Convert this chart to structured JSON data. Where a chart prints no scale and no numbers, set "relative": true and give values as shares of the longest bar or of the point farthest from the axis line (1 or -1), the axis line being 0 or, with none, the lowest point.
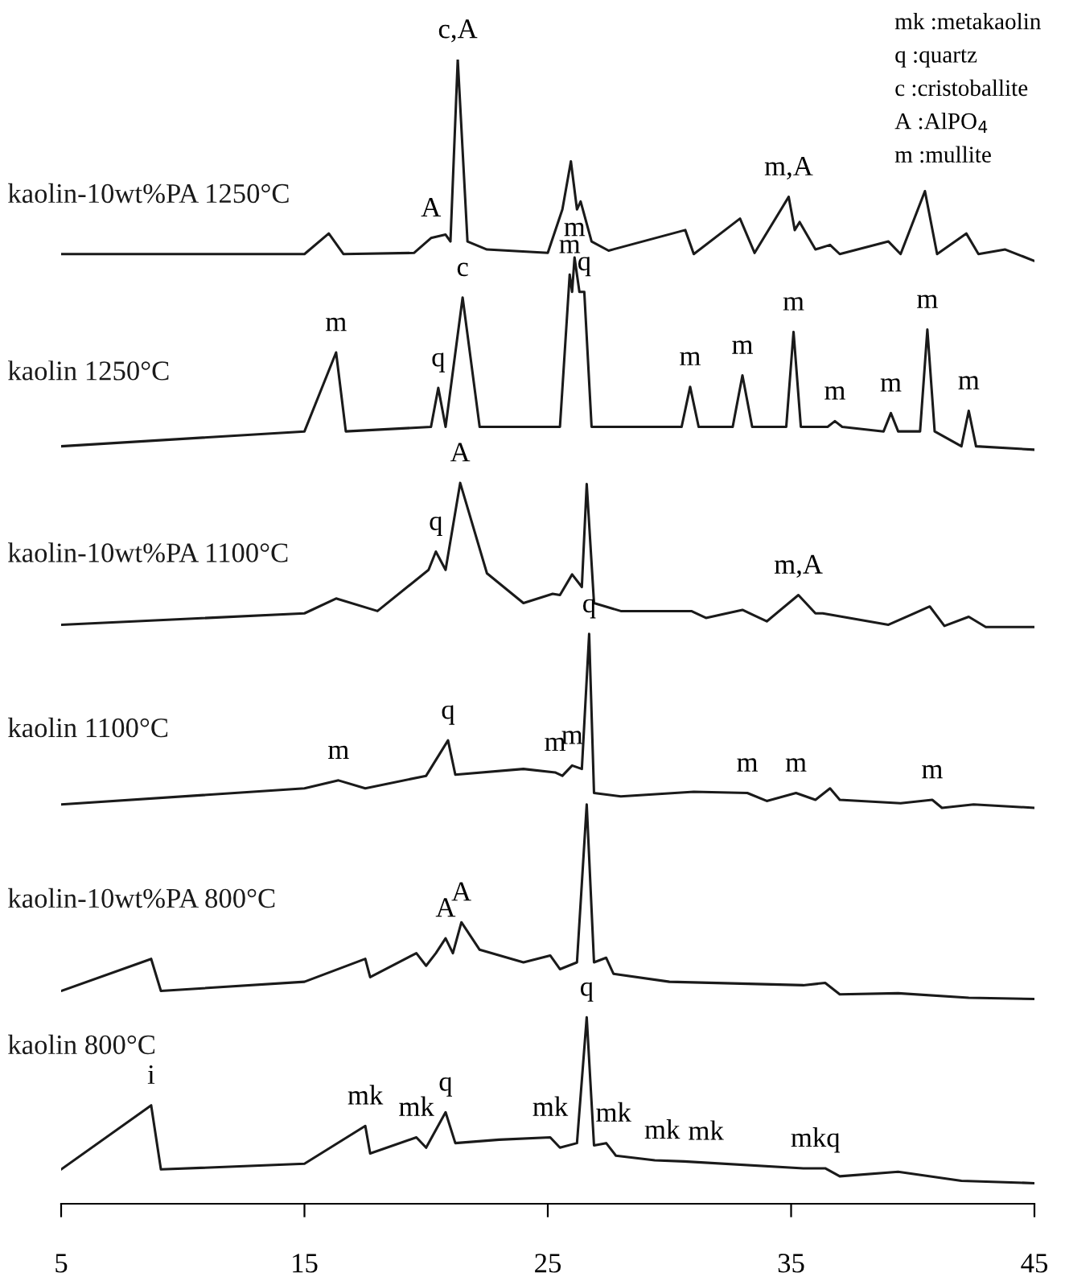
{
  "chart_data": {
    "type": "line",
    "relative": true,
    "xlim": [
      5,
      45
    ],
    "xticks": [
      5,
      15,
      25,
      35,
      45
    ],
    "tick_labels": "x",
    "grid": false,
    "marker": "none",
    "line_style": "solid",
    "series": [
      {
        "name": "kaolin-10wt%PA 1250°C",
        "color": "#1a1a1a",
        "x": [
          5,
          15,
          16.0,
          16.6,
          19.5,
          20.2,
          20.8,
          21.0,
          21.3,
          21.7,
          22.5,
          25.0,
          25.6,
          25.95,
          26.2,
          26.35,
          26.8,
          27.5,
          30.65,
          31.0,
          32.9,
          33.5,
          34.9,
          35.15,
          35.35,
          36.0,
          36.6,
          37.0,
          39.0,
          39.5,
          40.5,
          41.0,
          42.2,
          42.7,
          43.8,
          45
        ],
        "values": [
          0.83,
          0.83,
          0.848,
          0.83,
          0.831,
          0.844,
          0.847,
          0.841,
          1.0,
          0.841,
          0.834,
          0.831,
          0.869,
          0.911,
          0.869,
          0.876,
          0.841,
          0.833,
          0.851,
          0.83,
          0.861,
          0.831,
          0.88,
          0.851,
          0.858,
          0.834,
          0.838,
          0.83,
          0.841,
          0.83,
          0.885,
          0.83,
          0.848,
          0.83,
          0.834,
          0.824
        ]
      },
      {
        "name": "kaolin 1250°C",
        "color": "#1a1a1a",
        "x": [
          5,
          15,
          16.3,
          16.7,
          20.2,
          20.5,
          20.8,
          21.5,
          22.2,
          25.5,
          25.9,
          26.0,
          26.1,
          26.3,
          26.5,
          26.8,
          30.5,
          30.85,
          31.2,
          32.6,
          33.0,
          33.4,
          34.8,
          35.1,
          35.4,
          36.5,
          36.8,
          37.1,
          38.8,
          39.1,
          39.4,
          40.3,
          40.6,
          40.9,
          42.0,
          42.3,
          42.6,
          45
        ],
        "values": [
          0.662,
          0.675,
          0.744,
          0.675,
          0.679,
          0.713,
          0.679,
          0.792,
          0.679,
          0.679,
          0.812,
          0.797,
          0.827,
          0.797,
          0.797,
          0.679,
          0.679,
          0.714,
          0.679,
          0.679,
          0.724,
          0.679,
          0.679,
          0.762,
          0.679,
          0.679,
          0.684,
          0.679,
          0.675,
          0.691,
          0.675,
          0.675,
          0.764,
          0.675,
          0.662,
          0.693,
          0.662,
          0.659
        ]
      },
      {
        "name": "kaolin-10wt%PA 1100°C",
        "color": "#1a1a1a",
        "x": [
          5,
          15,
          16.3,
          18,
          20.1,
          20.4,
          20.8,
          21.4,
          22.5,
          24,
          25.2,
          25.5,
          26.0,
          26.4,
          26.6,
          26.9,
          28,
          30.9,
          31.5,
          33.0,
          34,
          35.3,
          36,
          36.3,
          39,
          40.7,
          41.3,
          42.3,
          43,
          45
        ],
        "values": [
          0.506,
          0.516,
          0.529,
          0.518,
          0.554,
          0.57,
          0.554,
          0.63,
          0.551,
          0.525,
          0.533,
          0.532,
          0.55,
          0.539,
          0.629,
          0.525,
          0.518,
          0.518,
          0.512,
          0.519,
          0.509,
          0.532,
          0.516,
          0.516,
          0.506,
          0.522,
          0.505,
          0.513,
          0.504,
          0.504
        ]
      },
      {
        "name": "kaolin 1100°C",
        "color": "#1a1a1a",
        "x": [
          5,
          15,
          16.4,
          17.5,
          20,
          20.9,
          21.2,
          24,
          25.3,
          25.6,
          26.0,
          26.4,
          26.7,
          26.9,
          28,
          31.0,
          33.2,
          34,
          35.2,
          36,
          36.6,
          37,
          39.5,
          40.8,
          41.2,
          42.5,
          45
        ],
        "values": [
          0.349,
          0.363,
          0.37,
          0.363,
          0.374,
          0.405,
          0.375,
          0.38,
          0.377,
          0.374,
          0.383,
          0.38,
          0.498,
          0.359,
          0.356,
          0.36,
          0.359,
          0.352,
          0.359,
          0.353,
          0.363,
          0.353,
          0.35,
          0.353,
          0.346,
          0.349,
          0.346
        ]
      },
      {
        "name": "kaolin-10wt%PA 800°C",
        "color": "#1a1a1a",
        "x": [
          5,
          8.7,
          9.1,
          15,
          17.5,
          17.7,
          19.6,
          20.0,
          20.4,
          20.8,
          21.1,
          21.45,
          22.2,
          24,
          25.1,
          25.5,
          26.2,
          26.6,
          26.9,
          27.4,
          27.7,
          30,
          35.5,
          36.4,
          37,
          39.4,
          42.3,
          45
        ],
        "values": [
          0.186,
          0.214,
          0.186,
          0.194,
          0.214,
          0.198,
          0.219,
          0.208,
          0.219,
          0.232,
          0.219,
          0.246,
          0.222,
          0.211,
          0.217,
          0.205,
          0.211,
          0.349,
          0.211,
          0.215,
          0.201,
          0.194,
          0.191,
          0.193,
          0.183,
          0.184,
          0.18,
          0.179
        ]
      },
      {
        "name": "kaolin 800°C",
        "color": "#1a1a1a",
        "x": [
          5,
          8.7,
          9.1,
          15,
          17.5,
          17.7,
          19.6,
          20.0,
          20.8,
          21.2,
          23,
          25.1,
          25.5,
          26.2,
          26.6,
          26.9,
          27.4,
          27.8,
          29.4,
          30.6,
          35.5,
          36.4,
          37,
          39.4,
          42,
          45
        ],
        "values": [
          0.03,
          0.086,
          0.03,
          0.035,
          0.068,
          0.044,
          0.058,
          0.049,
          0.08,
          0.053,
          0.056,
          0.058,
          0.049,
          0.053,
          0.163,
          0.051,
          0.053,
          0.042,
          0.038,
          0.037,
          0.031,
          0.031,
          0.024,
          0.028,
          0.02,
          0.018
        ]
      }
    ],
    "annotations": [
      "mk :metakaolin",
      "q :quartz",
      "c :cristoballite",
      "A :AlPO$_{4}$",
      "m :mullite",
      {
        "text": "c,A",
        "x": 21.3,
        "y": 1.0
      },
      {
        "text": "A",
        "x": 20.2,
        "y": 0.844
      },
      {
        "text": "m,A",
        "x": 34.9,
        "y": 0.88
      },
      {
        "text": "m",
        "x": 16.3,
        "y": 0.744
      },
      {
        "text": "q",
        "x": 20.5,
        "y": 0.713
      },
      {
        "text": "c",
        "x": 21.5,
        "y": 0.792
      },
      {
        "text": "m",
        "x": 25.9,
        "y": 0.812
      },
      {
        "text": "m",
        "x": 26.1,
        "y": 0.827
      },
      {
        "text": "q",
        "x": 26.5,
        "y": 0.797
      },
      {
        "text": "m",
        "x": 30.85,
        "y": 0.714
      },
      {
        "text": "m",
        "x": 33.0,
        "y": 0.724
      },
      {
        "text": "m",
        "x": 35.1,
        "y": 0.762
      },
      {
        "text": "m",
        "x": 36.8,
        "y": 0.684
      },
      {
        "text": "m",
        "x": 39.1,
        "y": 0.691
      },
      {
        "text": "m",
        "x": 40.6,
        "y": 0.764
      },
      {
        "text": "m",
        "x": 42.3,
        "y": 0.693
      },
      {
        "text": "q",
        "x": 20.4,
        "y": 0.57
      },
      {
        "text": "A",
        "x": 21.4,
        "y": 0.63
      },
      {
        "text": "m,A",
        "x": 35.3,
        "y": 0.532
      },
      {
        "text": "q",
        "x": 26.7,
        "y": 0.498
      },
      {
        "text": "m",
        "x": 16.4,
        "y": 0.37
      },
      {
        "text": "q",
        "x": 20.9,
        "y": 0.405
      },
      {
        "text": "m",
        "x": 25.3,
        "y": 0.377
      },
      {
        "text": "m",
        "x": 26.0,
        "y": 0.383
      },
      {
        "text": "m",
        "x": 33.2,
        "y": 0.359
      },
      {
        "text": "m",
        "x": 35.2,
        "y": 0.359
      },
      {
        "text": "m",
        "x": 40.8,
        "y": 0.353
      },
      {
        "text": "A",
        "x": 20.8,
        "y": 0.232
      },
      {
        "text": "A",
        "x": 21.45,
        "y": 0.246
      },
      {
        "text": "i",
        "x": 8.7,
        "y": 0.086
      },
      {
        "text": "mk",
        "x": 17.5,
        "y": 0.068
      },
      {
        "text": "mk",
        "x": 19.6,
        "y": 0.058
      },
      {
        "text": "q",
        "x": 20.8,
        "y": 0.08
      },
      {
        "text": "mk",
        "x": 25.1,
        "y": 0.058
      },
      {
        "text": "q",
        "x": 26.6,
        "y": 0.163
      },
      {
        "text": "mk",
        "x": 27.7,
        "y": 0.053
      },
      {
        "text": "mk",
        "x": 29.7,
        "y": 0.038
      },
      {
        "text": "mk",
        "x": 31.5,
        "y": 0.037
      },
      {
        "text": "mkq",
        "x": 36.0,
        "y": 0.031
      }
    ]
  }
}
